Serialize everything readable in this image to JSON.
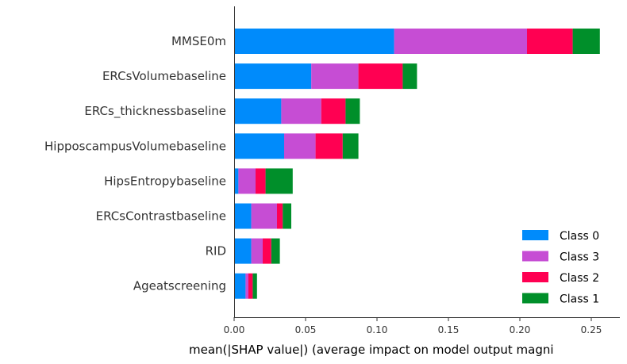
{
  "chart_data": {
    "type": "bar",
    "orientation": "horizontal",
    "stacked": true,
    "xlabel": "mean(|SHAP value|) (average impact on model output magni",
    "xlim": [
      0,
      0.27
    ],
    "xticks": [
      0.0,
      0.05,
      0.1,
      0.15,
      0.2,
      0.25
    ],
    "xtick_labels": [
      "0.00",
      "0.05",
      "0.10",
      "0.15",
      "0.20",
      "0.25"
    ],
    "grid": false,
    "legend_position": "bottom-right",
    "categories": [
      "MMSE0m",
      "ERCsVolumebaseline",
      "ERCs_thicknessbaseline",
      "HipposcampusVolumebaseline",
      "HipsEntropybaseline",
      "ERCsContrastbaseline",
      "RID",
      "Ageatscreening"
    ],
    "series": [
      {
        "name": "Class 0",
        "color": "#008bfb",
        "values": [
          0.112,
          0.054,
          0.033,
          0.035,
          0.003,
          0.012,
          0.012,
          0.008
        ]
      },
      {
        "name": "Class 3",
        "color": "#c64dd4",
        "values": [
          0.093,
          0.033,
          0.028,
          0.022,
          0.012,
          0.018,
          0.008,
          0.002
        ]
      },
      {
        "name": "Class 2",
        "color": "#ff0052",
        "values": [
          0.032,
          0.031,
          0.017,
          0.019,
          0.007,
          0.004,
          0.006,
          0.003
        ]
      },
      {
        "name": "Class 1",
        "color": "#008f2a",
        "values": [
          0.019,
          0.01,
          0.01,
          0.011,
          0.019,
          0.006,
          0.006,
          0.003
        ]
      }
    ],
    "legend_order": [
      "Class 0",
      "Class 3",
      "Class 2",
      "Class 1"
    ]
  }
}
